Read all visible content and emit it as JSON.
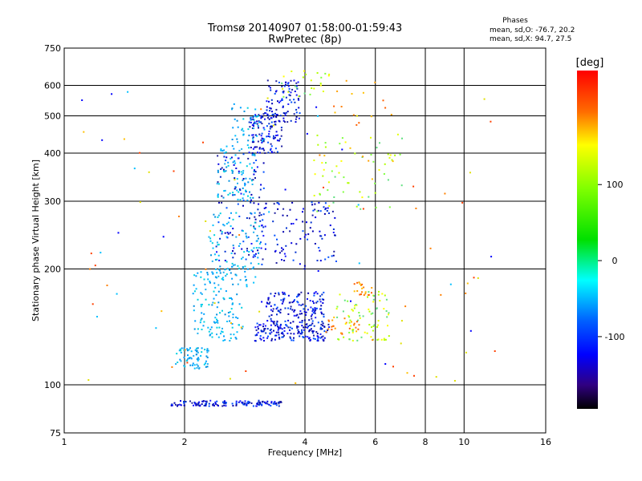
{
  "chart_data": {
    "type": "scatter",
    "title": "Tromsø 20140907 01:58:00-01:59:43",
    "subtitle": "RwPretec (8p)",
    "xlabel": "Frequency [MHz]",
    "ylabel": "Stationary phase Virtual Height [km]",
    "x_scale": "log",
    "y_scale": "log",
    "xlim": [
      1,
      16
    ],
    "ylim": [
      75,
      750
    ],
    "x_ticks": [
      1,
      2,
      4,
      6,
      8,
      10,
      16
    ],
    "y_ticks": [
      75,
      100,
      200,
      300,
      400,
      500,
      600,
      750
    ],
    "x_gridlines": [
      2,
      4,
      6,
      8,
      10
    ],
    "y_gridlines": [
      100,
      200,
      300,
      400,
      500,
      600
    ],
    "grid": true,
    "stats": {
      "heading": "Phases",
      "line_o": "mean, sd,O: -76.7, 20.2",
      "line_x": "mean, sd,X:  94.7, 27.5"
    },
    "colorbar": {
      "label": "[deg]",
      "ticks": [
        100,
        0,
        -100
      ],
      "colormap": "rainbow",
      "top_color": "#ff0000",
      "bottom_color": "#000000"
    },
    "series": [
      {
        "phase_band": "blue",
        "clusters": [
          {
            "x": [
              1.85,
              3.5
            ],
            "y": [
              88,
              91
            ],
            "n": 140
          },
          {
            "x": [
              3.0,
              4.6
            ],
            "y": [
              130,
              145
            ],
            "n": 160
          },
          {
            "x": [
              3.2,
              4.5
            ],
            "y": [
              145,
              175
            ],
            "n": 140
          },
          {
            "x": [
              2.9,
              3.5
            ],
            "y": [
              400,
              510
            ],
            "n": 120
          },
          {
            "x": [
              3.2,
              3.9
            ],
            "y": [
              480,
              620
            ],
            "n": 90
          },
          {
            "x": [
              2.4,
              3.2
            ],
            "y": [
              210,
              400
            ],
            "n": 110
          },
          {
            "x": [
              3.0,
              4.8
            ],
            "y": [
              200,
              300
            ],
            "n": 110
          }
        ]
      },
      {
        "phase_band": "cyan",
        "clusters": [
          {
            "x": [
              1.9,
              2.3
            ],
            "y": [
              110,
              125
            ],
            "n": 70
          },
          {
            "x": [
              2.1,
              2.8
            ],
            "y": [
              130,
              200
            ],
            "n": 130
          },
          {
            "x": [
              2.3,
              3.1
            ],
            "y": [
              180,
              280
            ],
            "n": 100
          },
          {
            "x": [
              2.4,
              3.0
            ],
            "y": [
              300,
              420
            ],
            "n": 80
          },
          {
            "x": [
              2.6,
              3.2
            ],
            "y": [
              420,
              540
            ],
            "n": 40
          }
        ]
      },
      {
        "phase_band": "green-yellow",
        "clusters": [
          {
            "x": [
              4.8,
              6.5
            ],
            "y": [
              130,
              175
            ],
            "n": 80
          },
          {
            "x": [
              4.2,
              7.0
            ],
            "y": [
              280,
              450
            ],
            "n": 60
          },
          {
            "x": [
              3.5,
              4.8
            ],
            "y": [
              560,
              660
            ],
            "n": 25
          }
        ]
      },
      {
        "phase_band": "orange",
        "clusters": [
          {
            "x": [
              4.5,
              5.5
            ],
            "y": [
              135,
              150
            ],
            "n": 25
          },
          {
            "x": [
              5.3,
              5.9
            ],
            "y": [
              170,
              185
            ],
            "n": 20
          },
          {
            "x": [
              4.3,
              6.8
            ],
            "y": [
              380,
              650
            ],
            "n": 20
          }
        ]
      },
      {
        "phase_band": "sparse",
        "clusters": [
          {
            "x": [
              1.1,
              12.0
            ],
            "y": [
              95,
              600
            ],
            "n": 90
          }
        ]
      }
    ]
  }
}
